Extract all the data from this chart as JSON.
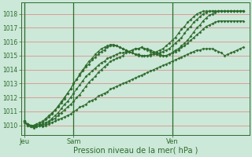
{
  "bg_color": "#cce8d8",
  "grid_color": "#e08080",
  "line_color": "#2d6b2d",
  "title": "Pression niveau de la mer( hPa )",
  "ylim": [
    1009.3,
    1018.8
  ],
  "yticks": [
    1010,
    1011,
    1012,
    1013,
    1014,
    1015,
    1016,
    1017,
    1018
  ],
  "day_positions": [
    0,
    16,
    48
  ],
  "day_labels": [
    "Jeu",
    "Sam",
    "Ven"
  ],
  "n_total": 72,
  "lines": [
    [
      1010.3,
      1010.0,
      1009.9,
      1009.8,
      1009.9,
      1010.0,
      1009.9,
      1010.0,
      1010.1,
      1010.2,
      1010.3,
      1010.4,
      1010.5,
      1010.6,
      1010.7,
      1010.8,
      1011.0,
      1011.1,
      1011.3,
      1011.4,
      1011.5,
      1011.7,
      1011.8,
      1011.9,
      1012.1,
      1012.2,
      1012.3,
      1012.4,
      1012.6,
      1012.7,
      1012.8,
      1012.9,
      1013.0,
      1013.1,
      1013.2,
      1013.3,
      1013.4,
      1013.5,
      1013.6,
      1013.7,
      1013.8,
      1013.9,
      1014.0,
      1014.1,
      1014.2,
      1014.3,
      1014.4,
      1014.5,
      1014.6,
      1014.7,
      1014.8,
      1014.9,
      1015.0,
      1015.1,
      1015.2,
      1015.3,
      1015.4,
      1015.4,
      1015.5,
      1015.5,
      1015.5,
      1015.5,
      1015.4,
      1015.3,
      1015.2,
      1015.0,
      1015.1,
      1015.2,
      1015.3,
      1015.4,
      1015.5,
      1015.6
    ],
    [
      1010.3,
      1010.1,
      1010.0,
      1009.9,
      1009.9,
      1010.0,
      1010.0,
      1010.1,
      1010.2,
      1010.4,
      1010.5,
      1010.7,
      1010.9,
      1011.1,
      1011.3,
      1011.5,
      1011.7,
      1012.0,
      1012.2,
      1012.5,
      1012.8,
      1013.1,
      1013.3,
      1013.5,
      1013.8,
      1014.0,
      1014.2,
      1014.4,
      1014.6,
      1014.7,
      1014.8,
      1014.9,
      1015.0,
      1015.2,
      1015.3,
      1015.4,
      1015.5,
      1015.5,
      1015.6,
      1015.5,
      1015.4,
      1015.3,
      1015.2,
      1015.1,
      1015.0,
      1015.0,
      1015.0,
      1015.1,
      1015.2,
      1015.3,
      1015.4,
      1015.6,
      1015.7,
      1015.9,
      1016.1,
      1016.3,
      1016.5,
      1016.7,
      1016.9,
      1017.1,
      1017.2,
      1017.3,
      1017.4,
      1017.5,
      1017.5,
      1017.5,
      1017.5,
      1017.5,
      1017.5,
      1017.5,
      1017.5,
      1017.5
    ],
    [
      1010.2,
      1010.0,
      1009.9,
      1009.9,
      1009.9,
      1010.0,
      1010.1,
      1010.2,
      1010.3,
      1010.5,
      1010.7,
      1010.9,
      1011.2,
      1011.5,
      1011.7,
      1012.0,
      1012.3,
      1012.6,
      1012.9,
      1013.2,
      1013.5,
      1013.7,
      1013.9,
      1014.1,
      1014.3,
      1014.5,
      1014.6,
      1014.8,
      1014.9,
      1015.0,
      1015.1,
      1015.2,
      1015.2,
      1015.3,
      1015.3,
      1015.4,
      1015.5,
      1015.5,
      1015.6,
      1015.5,
      1015.5,
      1015.4,
      1015.3,
      1015.2,
      1015.1,
      1015.0,
      1015.0,
      1015.1,
      1015.2,
      1015.4,
      1015.5,
      1015.7,
      1015.9,
      1016.1,
      1016.4,
      1016.7,
      1017.0,
      1017.2,
      1017.5,
      1017.7,
      1017.9,
      1018.0,
      1018.1,
      1018.2,
      1018.2,
      1018.2,
      1018.2,
      1018.2,
      1018.2,
      1018.2,
      1018.2,
      1018.2
    ],
    [
      1010.3,
      1010.1,
      1010.0,
      1010.0,
      1010.1,
      1010.2,
      1010.3,
      1010.5,
      1010.7,
      1010.9,
      1011.1,
      1011.4,
      1011.7,
      1012.0,
      1012.3,
      1012.6,
      1013.0,
      1013.3,
      1013.6,
      1013.9,
      1014.2,
      1014.4,
      1014.7,
      1014.9,
      1015.1,
      1015.3,
      1015.4,
      1015.6,
      1015.7,
      1015.7,
      1015.7,
      1015.6,
      1015.5,
      1015.4,
      1015.3,
      1015.2,
      1015.1,
      1015.0,
      1015.0,
      1015.0,
      1015.0,
      1015.0,
      1015.1,
      1015.1,
      1015.2,
      1015.3,
      1015.4,
      1015.5,
      1015.7,
      1015.9,
      1016.1,
      1016.3,
      1016.6,
      1016.9,
      1017.1,
      1017.4,
      1017.6,
      1017.8,
      1018.0,
      1018.1,
      1018.2,
      1018.2,
      1018.2,
      1018.2,
      1018.2,
      1018.2,
      1018.2,
      1018.2,
      1018.2,
      1018.2,
      1018.2,
      1018.2
    ],
    [
      1010.3,
      1010.1,
      1010.0,
      1010.0,
      1010.0,
      1010.1,
      1010.2,
      1010.4,
      1010.6,
      1010.8,
      1011.1,
      1011.3,
      1011.6,
      1011.9,
      1012.3,
      1012.6,
      1013.0,
      1013.3,
      1013.7,
      1014.0,
      1014.3,
      1014.6,
      1014.8,
      1015.1,
      1015.3,
      1015.5,
      1015.6,
      1015.7,
      1015.8,
      1015.8,
      1015.7,
      1015.6,
      1015.5,
      1015.4,
      1015.3,
      1015.2,
      1015.1,
      1015.1,
      1015.0,
      1015.0,
      1015.0,
      1015.1,
      1015.2,
      1015.3,
      1015.4,
      1015.5,
      1015.7,
      1015.9,
      1016.1,
      1016.3,
      1016.6,
      1016.9,
      1017.1,
      1017.4,
      1017.6,
      1017.8,
      1018.0,
      1018.1,
      1018.2,
      1018.2,
      1018.2,
      1018.2,
      1018.2,
      1018.2,
      1018.2,
      1018.2,
      1018.2,
      1018.2,
      1018.2,
      1018.2,
      1018.2,
      1018.2
    ]
  ]
}
